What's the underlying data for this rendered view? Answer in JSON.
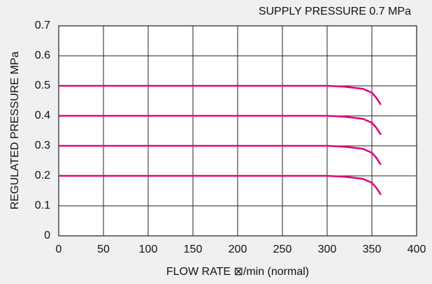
{
  "chart_data": {
    "type": "line",
    "title": "SUPPLY PRESSURE  0.7 MPa",
    "x_label": "FLOW RATE ⊠/min (normal)",
    "y_label": "REGULATED PRESSURE  MPa",
    "x": [
      0,
      300,
      320,
      340,
      350,
      355,
      360
    ],
    "series": [
      {
        "color": "#e0077d",
        "values": [
          0.5,
          0.5,
          0.497,
          0.49,
          0.477,
          0.46,
          0.437
        ]
      },
      {
        "color": "#e0077d",
        "values": [
          0.4,
          0.4,
          0.397,
          0.39,
          0.377,
          0.36,
          0.337
        ]
      },
      {
        "color": "#e0077d",
        "values": [
          0.3,
          0.3,
          0.297,
          0.29,
          0.277,
          0.26,
          0.237
        ]
      },
      {
        "color": "#e0077d",
        "values": [
          0.2,
          0.2,
          0.197,
          0.19,
          0.177,
          0.16,
          0.137
        ]
      }
    ],
    "xlim": [
      0,
      400
    ],
    "xticks": [
      0,
      50,
      100,
      150,
      200,
      250,
      300,
      350,
      400
    ],
    "ylim": [
      0,
      0.7
    ],
    "yticks": [
      0,
      0.1,
      0.2,
      0.3,
      0.4,
      0.5,
      0.6,
      0.7
    ],
    "grid": true
  }
}
